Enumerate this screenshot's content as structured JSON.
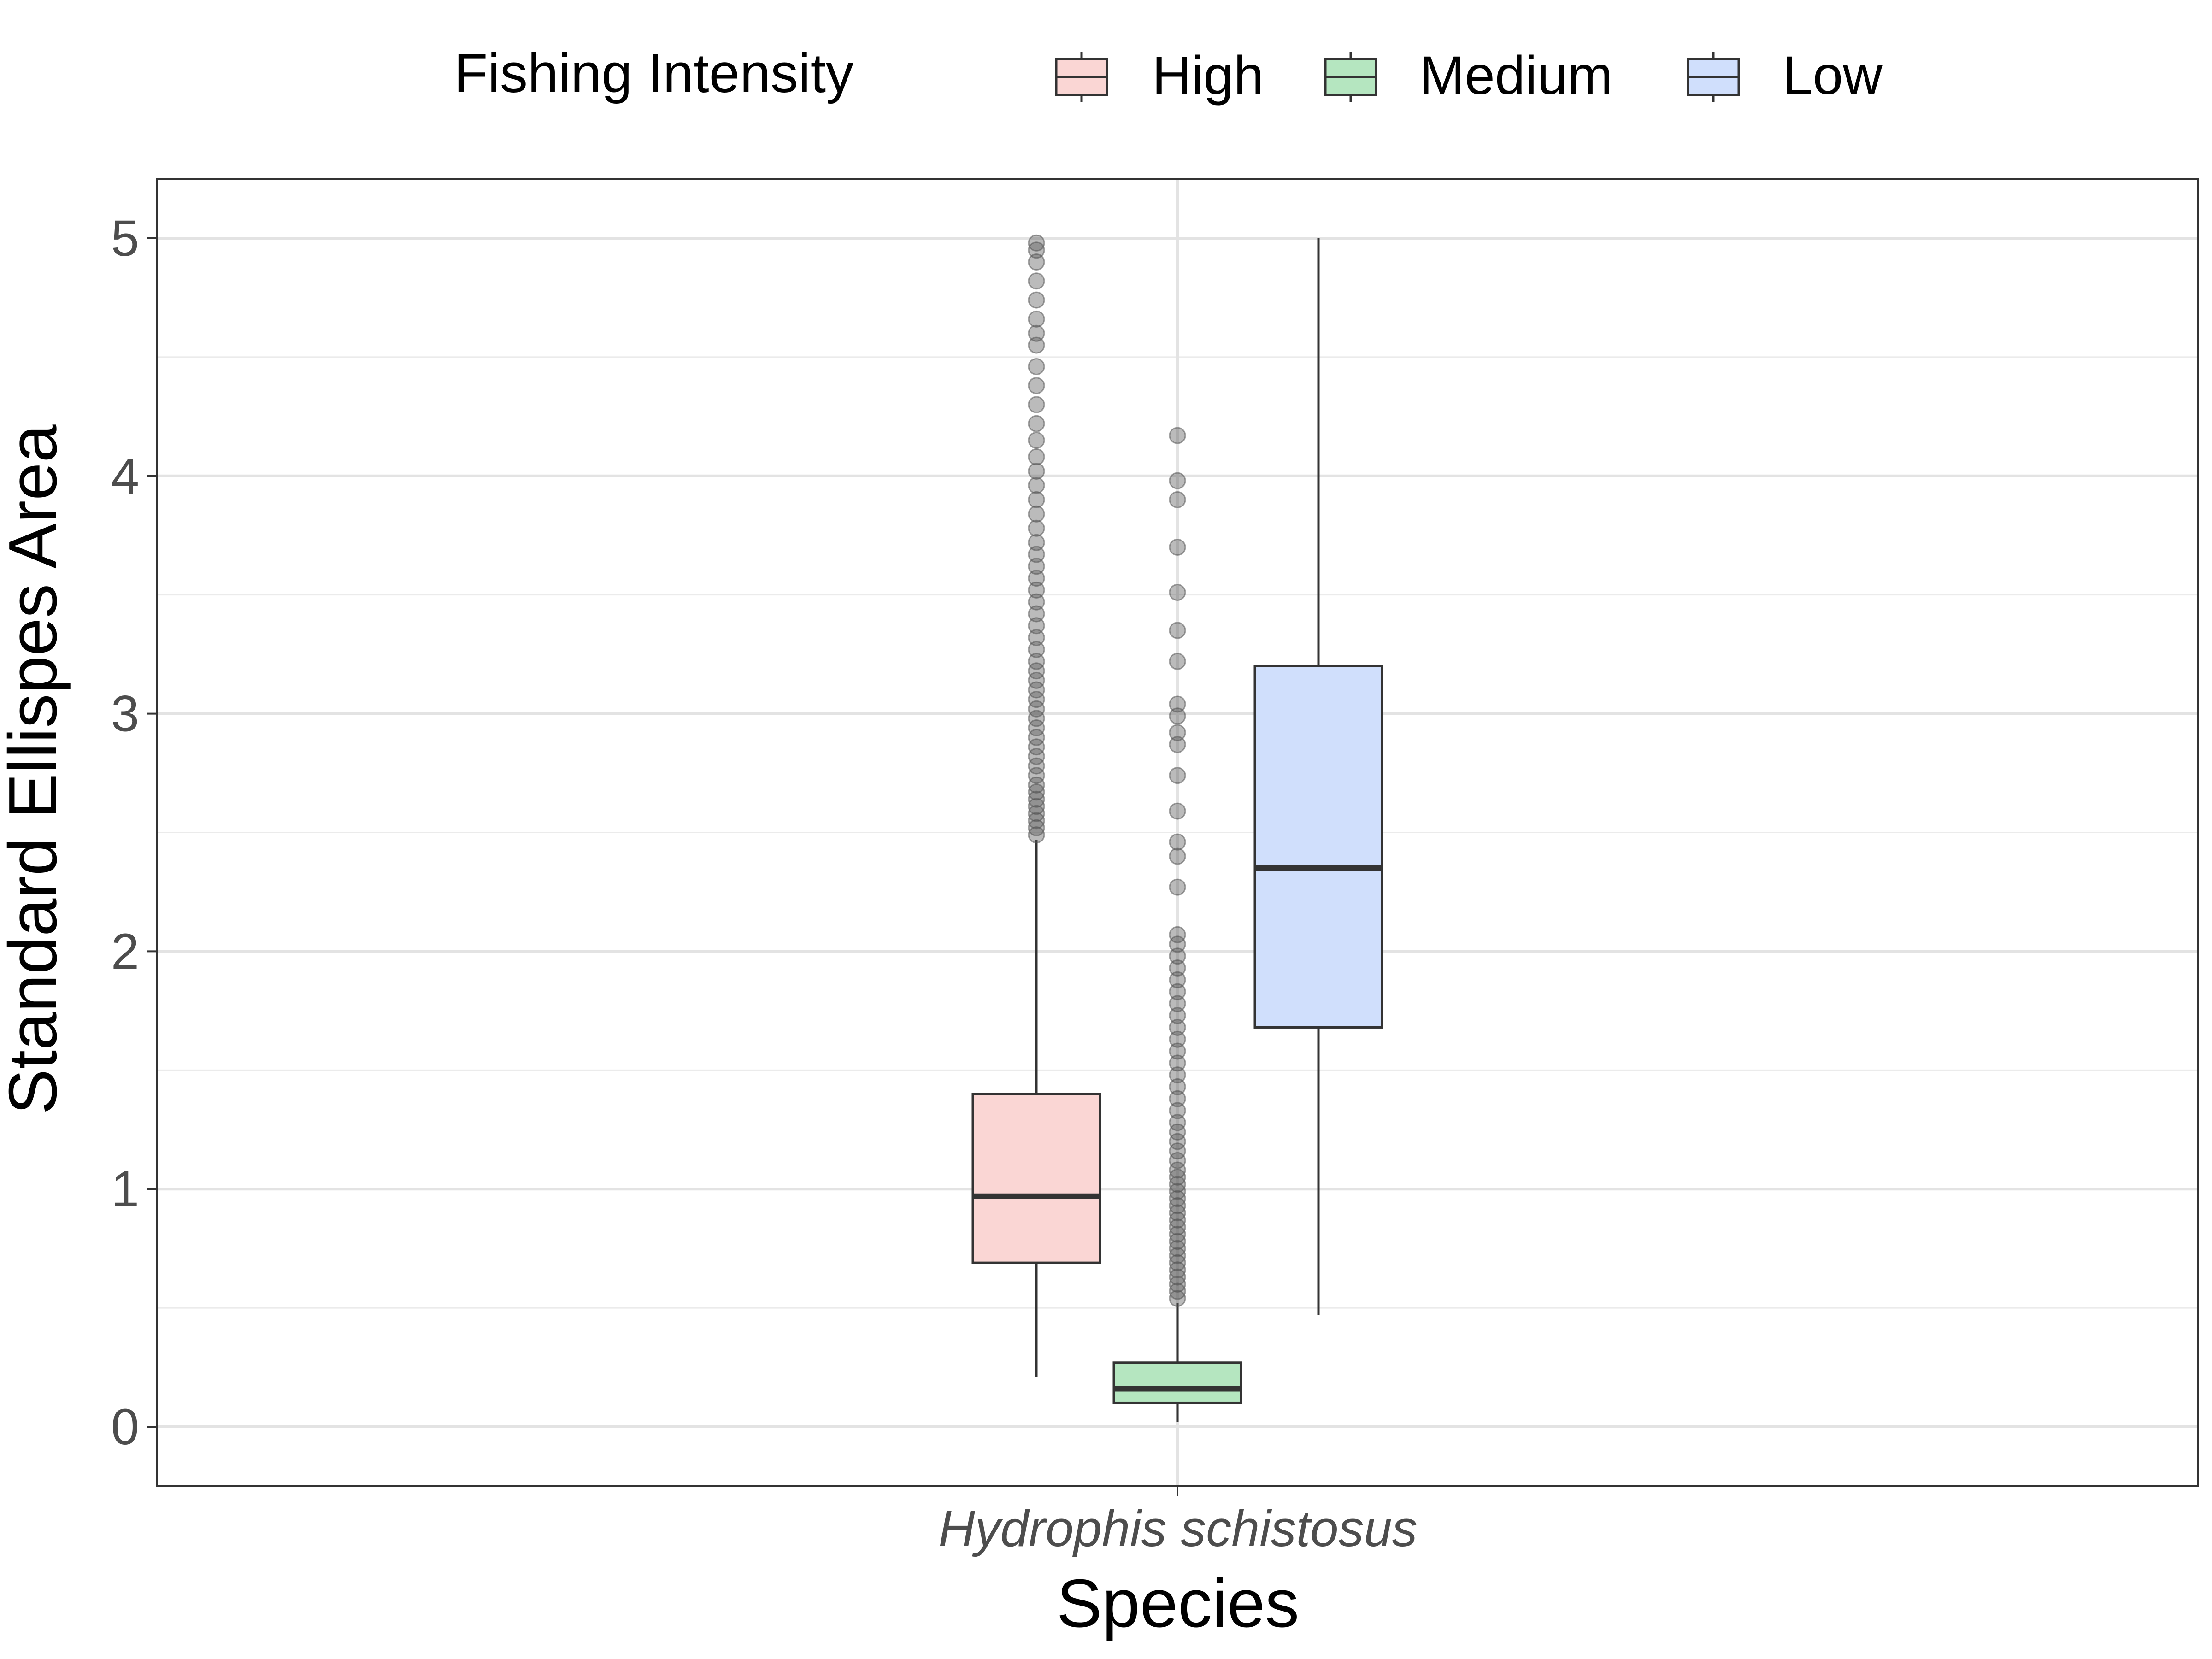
{
  "chart_data": {
    "type": "box",
    "title": "",
    "xlabel": "Species",
    "ylabel": "Standard Ellispes Area",
    "categories": [
      "Hydrophis schistosus"
    ],
    "ylim": [
      -0.25,
      5.25
    ],
    "yticks": [
      0,
      1,
      2,
      3,
      4,
      5
    ],
    "grid": true,
    "legend": {
      "title": "Fishing Intensity",
      "position": "top",
      "entries": [
        "High",
        "Medium",
        "Low"
      ]
    },
    "series": [
      {
        "name": "High",
        "color": "#fad6d4",
        "stats": {
          "min": 0.21,
          "q1": 0.69,
          "median": 0.97,
          "q3": 1.4,
          "max": 2.47
        },
        "outliers": [
          2.49,
          2.52,
          2.55,
          2.58,
          2.61,
          2.64,
          2.67,
          2.7,
          2.74,
          2.78,
          2.82,
          2.86,
          2.9,
          2.94,
          2.98,
          3.02,
          3.06,
          3.1,
          3.14,
          3.18,
          3.22,
          3.27,
          3.32,
          3.37,
          3.42,
          3.47,
          3.52,
          3.57,
          3.62,
          3.67,
          3.72,
          3.78,
          3.84,
          3.9,
          3.96,
          4.02,
          4.08,
          4.15,
          4.22,
          4.3,
          4.38,
          4.46,
          4.55,
          4.6,
          4.66,
          4.74,
          4.82,
          4.9,
          4.95,
          4.98
        ]
      },
      {
        "name": "Medium",
        "color": "#b5e6c0",
        "stats": {
          "min": 0.02,
          "q1": 0.1,
          "median": 0.16,
          "q3": 0.27,
          "max": 0.52
        },
        "outliers": [
          0.54,
          0.57,
          0.6,
          0.63,
          0.66,
          0.69,
          0.72,
          0.75,
          0.78,
          0.81,
          0.84,
          0.87,
          0.9,
          0.93,
          0.96,
          0.99,
          1.02,
          1.05,
          1.08,
          1.12,
          1.16,
          1.2,
          1.24,
          1.28,
          1.33,
          1.38,
          1.43,
          1.48,
          1.53,
          1.58,
          1.63,
          1.68,
          1.73,
          1.78,
          1.83,
          1.88,
          1.93,
          1.98,
          2.03,
          2.07,
          2.27,
          2.4,
          2.46,
          2.59,
          2.74,
          2.87,
          2.92,
          2.99,
          3.04,
          3.22,
          3.35,
          3.51,
          3.7,
          3.9,
          3.98,
          4.17
        ]
      },
      {
        "name": "Low",
        "color": "#d0dffc",
        "stats": {
          "min": 0.47,
          "q1": 1.68,
          "median": 2.35,
          "q3": 3.2,
          "max": 5.0
        },
        "outliers": []
      }
    ]
  }
}
